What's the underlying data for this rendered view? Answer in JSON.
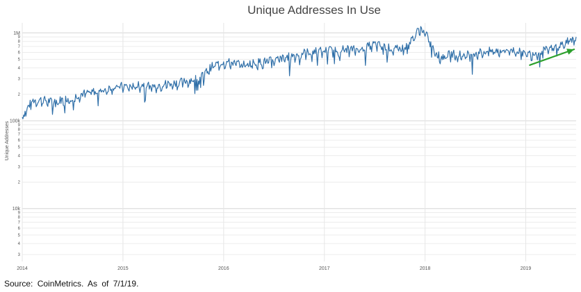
{
  "chart_data": {
    "type": "line",
    "title": "Unique Addresses In Use",
    "ylabel": "Unique Addresses",
    "xlabel": "",
    "yscale": "log",
    "ylim": [
      2500,
      1300000
    ],
    "xlim": [
      2014.0,
      2019.5
    ],
    "y_major_ticks": [
      {
        "value": 10000,
        "label": "10k"
      },
      {
        "value": 100000,
        "label": "100k"
      },
      {
        "value": 1000000,
        "label": "1M"
      }
    ],
    "y_minor_ticks": [
      {
        "value": 3000,
        "label": "3"
      },
      {
        "value": 4000,
        "label": "4"
      },
      {
        "value": 5000,
        "label": "5"
      },
      {
        "value": 6000,
        "label": "6"
      },
      {
        "value": 7000,
        "label": "7"
      },
      {
        "value": 8000,
        "label": "8"
      },
      {
        "value": 9000,
        "label": "9"
      },
      {
        "value": 20000,
        "label": "2"
      },
      {
        "value": 30000,
        "label": "3"
      },
      {
        "value": 40000,
        "label": "4"
      },
      {
        "value": 50000,
        "label": "5"
      },
      {
        "value": 60000,
        "label": "6"
      },
      {
        "value": 70000,
        "label": "7"
      },
      {
        "value": 80000,
        "label": "8"
      },
      {
        "value": 90000,
        "label": "9"
      },
      {
        "value": 200000,
        "label": "2"
      },
      {
        "value": 300000,
        "label": "3"
      },
      {
        "value": 400000,
        "label": "4"
      },
      {
        "value": 500000,
        "label": "5"
      },
      {
        "value": 600000,
        "label": "6"
      },
      {
        "value": 700000,
        "label": "7"
      },
      {
        "value": 800000,
        "label": "8"
      },
      {
        "value": 900000,
        "label": "9"
      }
    ],
    "x_ticks": [
      {
        "value": 2014,
        "label": "2014"
      },
      {
        "value": 2015,
        "label": "2015"
      },
      {
        "value": 2016,
        "label": "2016"
      },
      {
        "value": 2017,
        "label": "2017"
      },
      {
        "value": 2018,
        "label": "2018"
      },
      {
        "value": 2019,
        "label": "2019"
      }
    ],
    "series": [
      {
        "name": "Unique Addresses",
        "color": "#2f6fa8",
        "x": [
          2014.0,
          2014.05,
          2014.1,
          2014.2,
          2014.3,
          2014.4,
          2014.5,
          2014.6,
          2014.7,
          2014.8,
          2014.9,
          2015.0,
          2015.1,
          2015.2,
          2015.3,
          2015.4,
          2015.5,
          2015.6,
          2015.7,
          2015.75,
          2015.8,
          2015.85,
          2015.9,
          2016.0,
          2016.1,
          2016.2,
          2016.3,
          2016.4,
          2016.5,
          2016.6,
          2016.7,
          2016.8,
          2016.9,
          2017.0,
          2017.1,
          2017.2,
          2017.3,
          2017.4,
          2017.5,
          2017.6,
          2017.7,
          2017.8,
          2017.9,
          2017.95,
          2018.0,
          2018.05,
          2018.1,
          2018.15,
          2018.2,
          2018.3,
          2018.4,
          2018.5,
          2018.6,
          2018.7,
          2018.8,
          2018.9,
          2019.0,
          2019.1,
          2019.2,
          2019.3,
          2019.4,
          2019.45,
          2019.5
        ],
        "values": [
          110000,
          140000,
          170000,
          175000,
          165000,
          175000,
          185000,
          205000,
          215000,
          225000,
          245000,
          250000,
          245000,
          260000,
          250000,
          265000,
          270000,
          280000,
          300000,
          310000,
          330000,
          390000,
          430000,
          470000,
          460000,
          440000,
          460000,
          475000,
          490000,
          520000,
          560000,
          600000,
          620000,
          630000,
          650000,
          660000,
          650000,
          680000,
          750000,
          700000,
          650000,
          680000,
          950000,
          1150000,
          1000000,
          800000,
          640000,
          520000,
          560000,
          580000,
          560000,
          600000,
          620000,
          630000,
          650000,
          640000,
          580000,
          600000,
          640000,
          700000,
          780000,
          850000,
          900000
        ]
      }
    ],
    "annotations": [
      {
        "type": "arrow",
        "color": "#2ca02c",
        "description": "green trend arrow",
        "from": {
          "x": 2019.04,
          "y": 430000
        },
        "to": {
          "x": 2019.48,
          "y": 650000
        }
      }
    ]
  },
  "footer": {
    "source": "Source: CoinMetrics. As of 7/1/19."
  }
}
